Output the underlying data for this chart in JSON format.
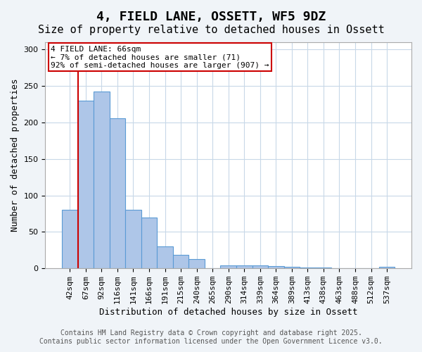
{
  "title": "4, FIELD LANE, OSSETT, WF5 9DZ",
  "subtitle": "Size of property relative to detached houses in Ossett",
  "xlabel": "Distribution of detached houses by size in Ossett",
  "ylabel": "Number of detached properties",
  "categories": [
    "42sqm",
    "67sqm",
    "92sqm",
    "116sqm",
    "141sqm",
    "166sqm",
    "191sqm",
    "215sqm",
    "240sqm",
    "265sqm",
    "290sqm",
    "314sqm",
    "339sqm",
    "364sqm",
    "389sqm",
    "413sqm",
    "438sqm",
    "463sqm",
    "488sqm",
    "512sqm",
    "537sqm"
  ],
  "values": [
    80,
    230,
    242,
    206,
    80,
    70,
    30,
    19,
    13,
    0,
    4,
    4,
    4,
    3,
    2,
    1,
    1,
    0,
    0,
    0,
    2
  ],
  "bar_color": "#aec6e8",
  "bar_edge_color": "#5b9bd5",
  "red_line_index": 1,
  "annotation_text": "4 FIELD LANE: 66sqm\n← 7% of detached houses are smaller (71)\n92% of semi-detached houses are larger (907) →",
  "annotation_box_color": "white",
  "annotation_box_edge_color": "#cc0000",
  "ylim": [
    0,
    310
  ],
  "yticks": [
    0,
    50,
    100,
    150,
    200,
    250,
    300
  ],
  "footer_text": "Contains HM Land Registry data © Crown copyright and database right 2025.\nContains public sector information licensed under the Open Government Licence v3.0.",
  "background_color": "#f0f4f8",
  "plot_bg_color": "white",
  "grid_color": "#c8d8e8",
  "title_fontsize": 13,
  "subtitle_fontsize": 11,
  "axis_label_fontsize": 9,
  "tick_fontsize": 8,
  "annotation_fontsize": 8,
  "footer_fontsize": 7
}
